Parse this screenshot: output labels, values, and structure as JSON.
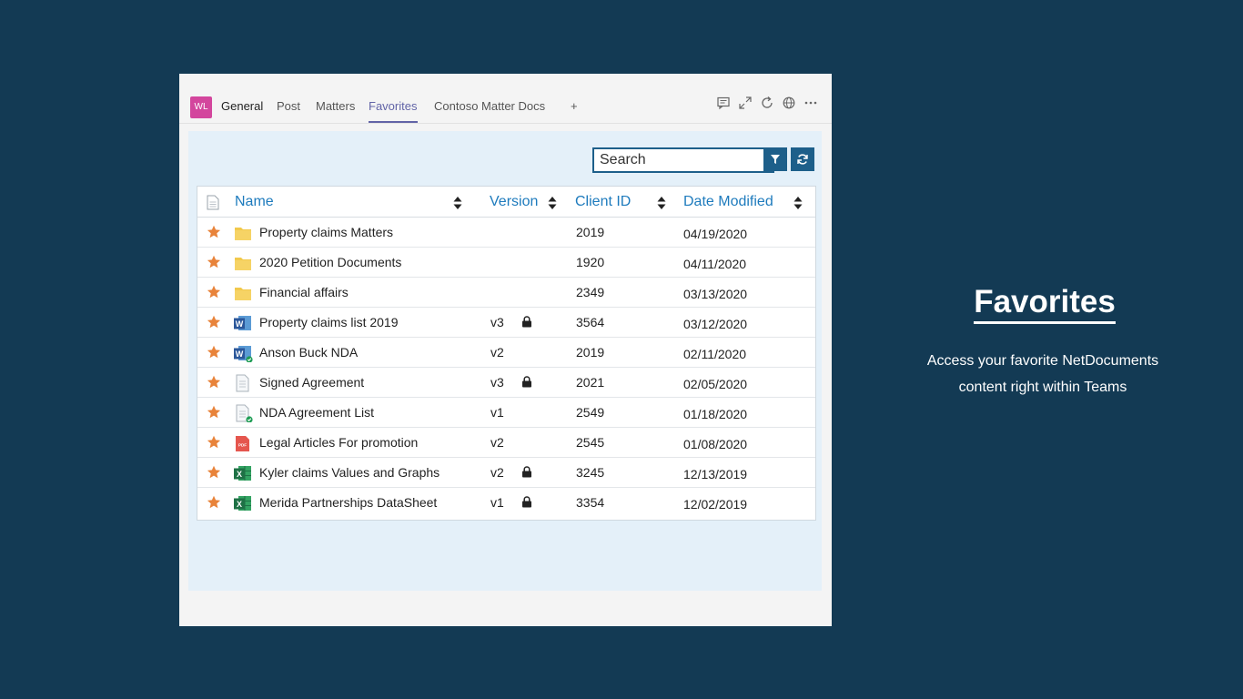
{
  "header": {
    "avatar_initials": "WL",
    "tabs": [
      {
        "label": "General"
      },
      {
        "label": "Post"
      },
      {
        "label": "Matters"
      },
      {
        "label": "Favorites"
      },
      {
        "label": "Contoso Matter Docs"
      },
      {
        "label": "+"
      }
    ],
    "active_tab": "Favorites",
    "toolbar_icons": [
      "chat-icon",
      "expand-icon",
      "refresh-icon",
      "globe-icon",
      "more-icon"
    ]
  },
  "search": {
    "placeholder": "Search"
  },
  "table": {
    "columns": [
      "Name",
      "Version",
      "Client ID",
      "Date Modified"
    ],
    "rows": [
      {
        "name": "Property claims Matters",
        "type": "folder",
        "version": "",
        "locked": false,
        "client_id": "2019",
        "date": "04/19/2020"
      },
      {
        "name": "2020 Petition Documents",
        "type": "folder",
        "version": "",
        "locked": false,
        "client_id": "1920",
        "date": "04/11/2020"
      },
      {
        "name": "Financial affairs",
        "type": "folder",
        "version": "",
        "locked": false,
        "client_id": "2349",
        "date": "03/13/2020"
      },
      {
        "name": "Property claims list 2019",
        "type": "word",
        "version": "v3",
        "locked": true,
        "client_id": "3564",
        "date": "03/12/2020"
      },
      {
        "name": "Anson Buck NDA",
        "type": "word-check",
        "version": "v2",
        "locked": false,
        "client_id": "2019",
        "date": "02/11/2020"
      },
      {
        "name": "Signed Agreement",
        "type": "doc",
        "version": "v3",
        "locked": true,
        "client_id": "2021",
        "date": "02/05/2020"
      },
      {
        "name": "NDA Agreement List",
        "type": "doc-check",
        "version": "v1",
        "locked": false,
        "client_id": "2549",
        "date": "01/18/2020"
      },
      {
        "name": "Legal Articles For promotion",
        "type": "pdf",
        "version": "v2",
        "locked": false,
        "client_id": "2545",
        "date": "01/08/2020"
      },
      {
        "name": "Kyler claims Values and Graphs",
        "type": "excel",
        "version": "v2",
        "locked": true,
        "client_id": "3245",
        "date": "12/13/2019"
      },
      {
        "name": "Merida Partnerships DataSheet",
        "type": "excel",
        "version": "v1",
        "locked": true,
        "client_id": "3354",
        "date": "12/02/2019"
      }
    ]
  },
  "promo": {
    "title": "Favorites",
    "line1": "Access your favorite NetDocuments",
    "line2": "content right within Teams"
  },
  "colors": {
    "background": "#133a54",
    "accent": "#6264a7",
    "header_link": "#1e7bbd",
    "star": "#e8833a",
    "button": "#1d5f8a"
  }
}
